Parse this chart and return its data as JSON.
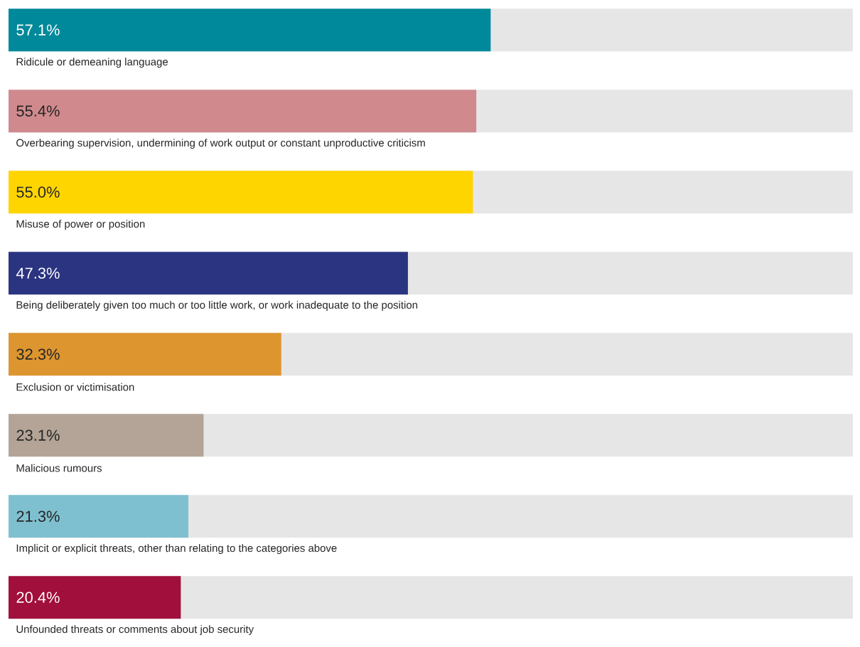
{
  "chart_data": {
    "type": "bar",
    "orientation": "horizontal",
    "categories": [
      "Ridicule or demeaning language",
      "Overbearing supervision, undermining of work output or constant unproductive criticism",
      "Misuse of power or position",
      "Being deliberately given too much or too little work, or work inadequate to the position",
      "Exclusion or victimisation",
      "Malicious rumours",
      "Implicit or explicit threats, other than relating to the categories above",
      "Unfounded threats or comments about job security"
    ],
    "values": [
      57.1,
      55.4,
      55.0,
      47.3,
      32.3,
      23.1,
      21.3,
      20.4
    ],
    "value_labels": [
      "57.1%",
      "55.4%",
      "55.0%",
      "47.3%",
      "32.3%",
      "23.1%",
      "21.3%",
      "20.4%"
    ],
    "colors": [
      "#00899a",
      "#d08a8e",
      "#ffd500",
      "#2b3481",
      "#dd952f",
      "#b3a497",
      "#7fc0d0",
      "#a10f3c"
    ],
    "xlim": [
      0,
      100
    ]
  }
}
